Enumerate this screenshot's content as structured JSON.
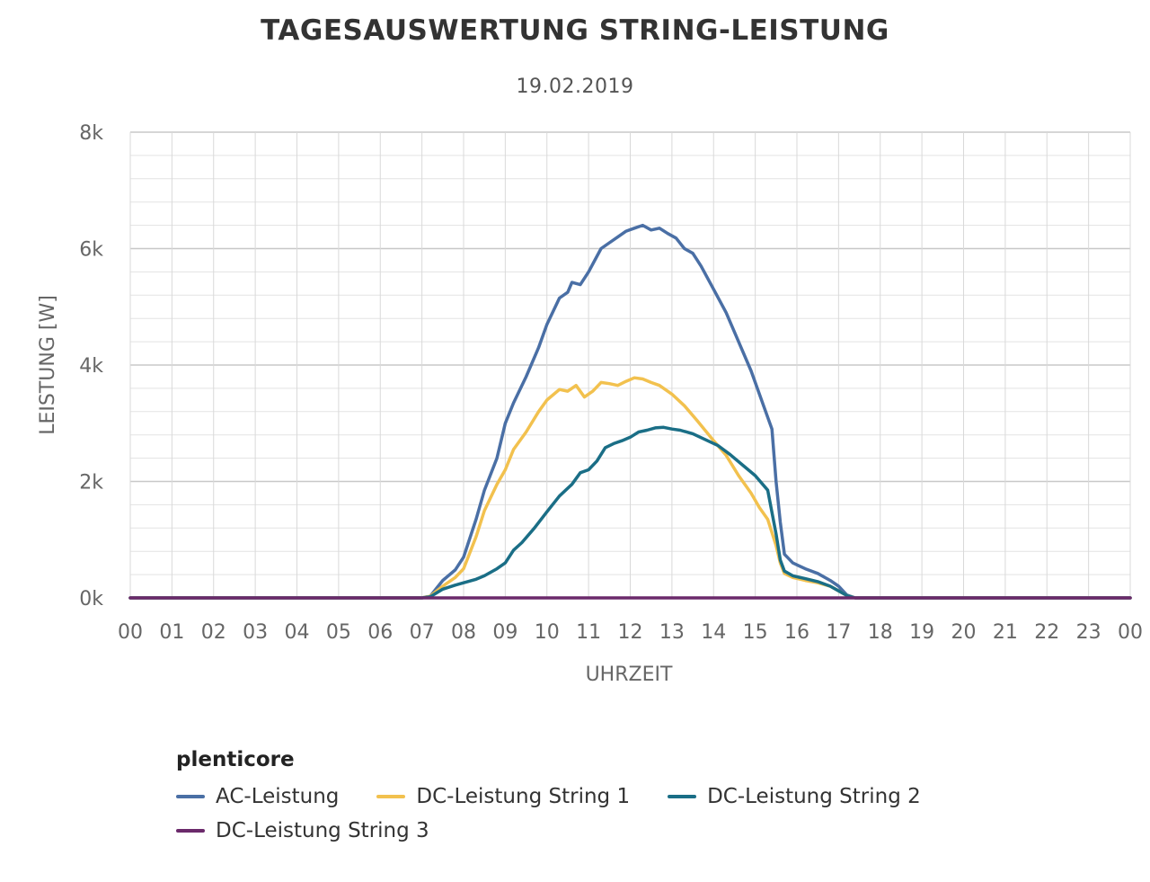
{
  "chart_data": {
    "type": "line",
    "title": "TAGESAUSWERTUNG STRING-LEISTUNG",
    "subtitle": "19.02.2019",
    "xlabel": "UHRZEIT",
    "ylabel": "LEISTUNG [W]",
    "x_ticks": [
      "00",
      "01",
      "02",
      "03",
      "04",
      "05",
      "06",
      "07",
      "08",
      "09",
      "10",
      "11",
      "12",
      "13",
      "14",
      "15",
      "16",
      "17",
      "18",
      "19",
      "20",
      "21",
      "22",
      "23",
      "00"
    ],
    "y_ticks": [
      "0k",
      "2k",
      "4k",
      "6k",
      "8k"
    ],
    "xlim": [
      0,
      24
    ],
    "ylim": [
      0,
      8000
    ],
    "grid": true,
    "legend_title": "plenticore",
    "legend_position": "bottom",
    "series": [
      {
        "name": "AC-Leistung",
        "color": "#4a6fa5",
        "points": [
          [
            0,
            0
          ],
          [
            7,
            0
          ],
          [
            7.2,
            30
          ],
          [
            7.5,
            300
          ],
          [
            7.8,
            480
          ],
          [
            8,
            700
          ],
          [
            8.3,
            1350
          ],
          [
            8.5,
            1850
          ],
          [
            8.8,
            2400
          ],
          [
            9,
            3000
          ],
          [
            9.2,
            3350
          ],
          [
            9.5,
            3800
          ],
          [
            9.8,
            4300
          ],
          [
            10,
            4700
          ],
          [
            10.3,
            5150
          ],
          [
            10.5,
            5250
          ],
          [
            10.6,
            5420
          ],
          [
            10.8,
            5380
          ],
          [
            11,
            5600
          ],
          [
            11.3,
            6000
          ],
          [
            11.5,
            6100
          ],
          [
            11.7,
            6200
          ],
          [
            11.9,
            6300
          ],
          [
            12.1,
            6350
          ],
          [
            12.3,
            6400
          ],
          [
            12.5,
            6320
          ],
          [
            12.7,
            6350
          ],
          [
            12.9,
            6260
          ],
          [
            13.1,
            6180
          ],
          [
            13.3,
            6000
          ],
          [
            13.5,
            5920
          ],
          [
            13.7,
            5700
          ],
          [
            14,
            5300
          ],
          [
            14.3,
            4900
          ],
          [
            14.6,
            4400
          ],
          [
            14.9,
            3900
          ],
          [
            15.2,
            3300
          ],
          [
            15.4,
            2900
          ],
          [
            15.5,
            2000
          ],
          [
            15.6,
            1300
          ],
          [
            15.7,
            750
          ],
          [
            15.9,
            600
          ],
          [
            16.2,
            500
          ],
          [
            16.5,
            420
          ],
          [
            16.8,
            300
          ],
          [
            17,
            200
          ],
          [
            17.2,
            50
          ],
          [
            17.4,
            0
          ],
          [
            24,
            0
          ]
        ]
      },
      {
        "name": "DC-Leistung String 1",
        "color": "#f2c14e",
        "points": [
          [
            0,
            0
          ],
          [
            7,
            0
          ],
          [
            7.2,
            30
          ],
          [
            7.5,
            200
          ],
          [
            7.8,
            350
          ],
          [
            8,
            500
          ],
          [
            8.3,
            1050
          ],
          [
            8.5,
            1500
          ],
          [
            8.8,
            1950
          ],
          [
            9,
            2200
          ],
          [
            9.2,
            2550
          ],
          [
            9.5,
            2850
          ],
          [
            9.8,
            3200
          ],
          [
            10,
            3400
          ],
          [
            10.3,
            3580
          ],
          [
            10.5,
            3550
          ],
          [
            10.7,
            3650
          ],
          [
            10.9,
            3450
          ],
          [
            11.1,
            3550
          ],
          [
            11.3,
            3700
          ],
          [
            11.5,
            3680
          ],
          [
            11.7,
            3650
          ],
          [
            11.9,
            3720
          ],
          [
            12.1,
            3780
          ],
          [
            12.3,
            3760
          ],
          [
            12.5,
            3700
          ],
          [
            12.7,
            3650
          ],
          [
            13,
            3500
          ],
          [
            13.3,
            3300
          ],
          [
            13.6,
            3050
          ],
          [
            14,
            2700
          ],
          [
            14.3,
            2450
          ],
          [
            14.6,
            2100
          ],
          [
            14.9,
            1800
          ],
          [
            15.1,
            1550
          ],
          [
            15.3,
            1350
          ],
          [
            15.5,
            900
          ],
          [
            15.6,
            600
          ],
          [
            15.7,
            420
          ],
          [
            15.9,
            350
          ],
          [
            16.2,
            300
          ],
          [
            16.5,
            260
          ],
          [
            16.8,
            200
          ],
          [
            17,
            120
          ],
          [
            17.2,
            40
          ],
          [
            17.4,
            0
          ],
          [
            24,
            0
          ]
        ]
      },
      {
        "name": "DC-Leistung String 2",
        "color": "#1a6e86",
        "points": [
          [
            0,
            0
          ],
          [
            7,
            0
          ],
          [
            7.2,
            20
          ],
          [
            7.5,
            150
          ],
          [
            7.8,
            220
          ],
          [
            8,
            260
          ],
          [
            8.3,
            320
          ],
          [
            8.5,
            380
          ],
          [
            8.8,
            500
          ],
          [
            9,
            600
          ],
          [
            9.2,
            820
          ],
          [
            9.4,
            950
          ],
          [
            9.7,
            1200
          ],
          [
            10,
            1480
          ],
          [
            10.3,
            1750
          ],
          [
            10.6,
            1950
          ],
          [
            10.8,
            2150
          ],
          [
            11,
            2200
          ],
          [
            11.2,
            2350
          ],
          [
            11.4,
            2580
          ],
          [
            11.6,
            2650
          ],
          [
            11.8,
            2700
          ],
          [
            12,
            2760
          ],
          [
            12.2,
            2850
          ],
          [
            12.4,
            2880
          ],
          [
            12.6,
            2920
          ],
          [
            12.8,
            2930
          ],
          [
            13,
            2900
          ],
          [
            13.2,
            2880
          ],
          [
            13.5,
            2820
          ],
          [
            13.8,
            2720
          ],
          [
            14.1,
            2620
          ],
          [
            14.4,
            2460
          ],
          [
            14.7,
            2280
          ],
          [
            15,
            2100
          ],
          [
            15.3,
            1850
          ],
          [
            15.5,
            1100
          ],
          [
            15.6,
            650
          ],
          [
            15.7,
            460
          ],
          [
            15.9,
            380
          ],
          [
            16.2,
            330
          ],
          [
            16.5,
            280
          ],
          [
            16.8,
            200
          ],
          [
            17,
            120
          ],
          [
            17.2,
            40
          ],
          [
            17.4,
            0
          ],
          [
            24,
            0
          ]
        ]
      },
      {
        "name": "DC-Leistung String 3",
        "color": "#6b2a6b",
        "points": [
          [
            0,
            0
          ],
          [
            24,
            0
          ]
        ]
      }
    ]
  }
}
